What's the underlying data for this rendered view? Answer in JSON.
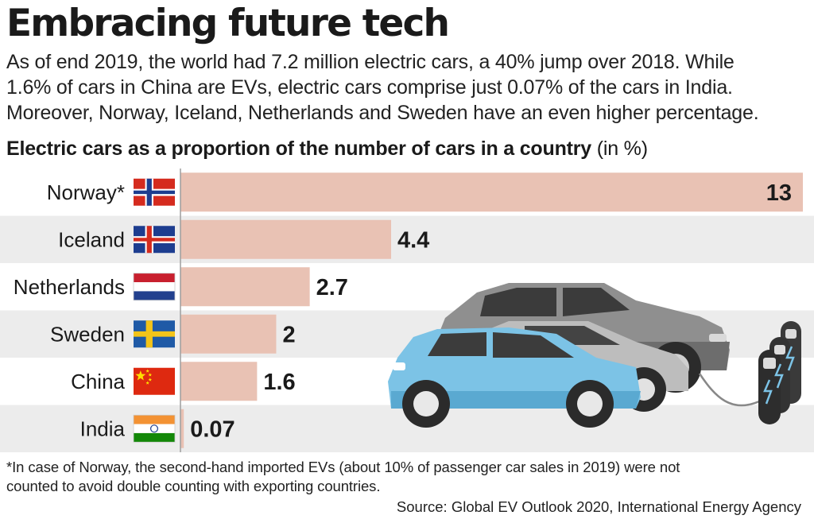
{
  "header": {
    "title": "Embracing future tech",
    "subtitle_lines": [
      "As of end 2019, the world had 7.2 million electric cars, a 40% jump over 2018.  While",
      "1.6% of cars in China are EVs, electric cars comprise just 0.07% of the cars in India.",
      "Moreover, Norway, Iceland, Netherlands and Sweden have an even higher percentage."
    ]
  },
  "chart_data": {
    "type": "bar",
    "orientation": "horizontal",
    "title": "Electric cars as a proportion of the number of cars in a country",
    "unit": "(in %)",
    "categories": [
      "Norway*",
      "Iceland",
      "Netherlands",
      "Sweden",
      "China",
      "India"
    ],
    "values": [
      13,
      4.4,
      2.7,
      2,
      1.6,
      0.07
    ],
    "value_labels": [
      "13",
      "4.4",
      "2.7",
      "2",
      "1.6",
      "0.07"
    ],
    "flags": [
      "norway-flag",
      "iceland-flag",
      "netherlands-flag",
      "sweden-flag",
      "china-flag",
      "india-flag"
    ],
    "xlim": [
      0,
      13
    ],
    "bar_color": "#e9c2b4",
    "row_band_color": "#ececec",
    "grid": false
  },
  "footnote_lines": [
    "*In case of Norway, the second-hand imported EVs (about 10% of passenger car sales in 2019) were not",
    "counted to avoid double counting with exporting countries."
  ],
  "source": "Source: Global EV Outlook 2020, International Energy Agency",
  "illustration": "electric-cars-and-charging-stations"
}
